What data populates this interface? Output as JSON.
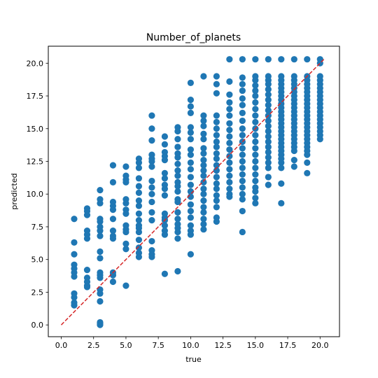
{
  "chart_data": {
    "type": "scatter",
    "title": "Number_of_planets",
    "xlabel": "true",
    "ylabel": "predicted",
    "xlim": [
      -1.0,
      21.5
    ],
    "ylim": [
      -0.9,
      21.3
    ],
    "xticks": [
      0.0,
      2.5,
      5.0,
      7.5,
      10.0,
      12.5,
      15.0,
      17.5,
      20.0
    ],
    "yticks": [
      0.0,
      2.5,
      5.0,
      7.5,
      10.0,
      12.5,
      15.0,
      17.5,
      20.0
    ],
    "xtick_labels": [
      "0.0",
      "2.5",
      "5.0",
      "7.5",
      "10.0",
      "12.5",
      "15.0",
      "17.5",
      "20.0"
    ],
    "ytick_labels": [
      "0.0",
      "2.5",
      "5.0",
      "7.5",
      "10.0",
      "12.5",
      "15.0",
      "17.5",
      "20.0"
    ],
    "grid": false,
    "point_color": "#1f77b4",
    "reference_line": {
      "style": "dashed",
      "color": "#d62728",
      "from": [
        0.0,
        0.0
      ],
      "to": [
        20.3,
        20.3
      ]
    },
    "series": [
      {
        "x": 1,
        "y": [
          8.1,
          6.3,
          5.4,
          4.6,
          4.3,
          4.0,
          3.7,
          2.4,
          2.1,
          1.7,
          1.5
        ]
      },
      {
        "x": 2,
        "y": [
          8.9,
          8.7,
          8.4,
          7.2,
          6.9,
          6.6,
          4.2,
          3.6,
          3.3,
          3.0,
          2.9
        ]
      },
      {
        "x": 3,
        "y": [
          10.3,
          9.6,
          9.3,
          8.1,
          7.9,
          7.5,
          7.2,
          6.8,
          5.6,
          5.1,
          4.0,
          3.8,
          3.6,
          2.7,
          2.4,
          1.8,
          0.2,
          0.1,
          0.0
        ]
      },
      {
        "x": 4,
        "y": [
          12.2,
          10.9,
          9.4,
          9.1,
          8.8,
          8.1,
          7.2,
          6.8,
          6.6,
          4.0,
          3.8,
          3.3
        ]
      },
      {
        "x": 5,
        "y": [
          12.1,
          11.4,
          11.1,
          10.9,
          9.6,
          9.3,
          8.8,
          8.5,
          7.6,
          7.3,
          7.1,
          6.2,
          5.8,
          3.0
        ]
      },
      {
        "x": 6,
        "y": [
          12.7,
          12.4,
          12.0,
          11.2,
          10.6,
          10.1,
          9.5,
          9.1,
          8.5,
          8.0,
          7.6,
          7.4,
          7.1,
          6.5,
          5.9,
          5.5,
          5.2
        ]
      },
      {
        "x": 7,
        "y": [
          16.0,
          15.0,
          14.1,
          13.0,
          12.7,
          12.5,
          12.1,
          11.0,
          10.5,
          10.0,
          9.4,
          8.6,
          8.0,
          6.4,
          5.7,
          5.4,
          5.2
        ]
      },
      {
        "x": 8,
        "y": [
          14.4,
          13.8,
          13.2,
          12.9,
          12.6,
          11.6,
          11.2,
          10.7,
          10.4,
          9.9,
          8.5,
          8.2,
          8.0,
          7.6,
          7.2,
          6.9,
          3.9
        ]
      },
      {
        "x": 9,
        "y": [
          15.1,
          14.8,
          14.2,
          13.6,
          13.1,
          12.8,
          12.3,
          11.8,
          11.4,
          10.9,
          10.6,
          10.2,
          9.6,
          9.4,
          8.6,
          8.1,
          7.7,
          7.4,
          7.1,
          6.6,
          4.1
        ]
      },
      {
        "x": 10,
        "y": [
          18.5,
          17.2,
          16.7,
          16.2,
          15.1,
          14.7,
          14.2,
          13.4,
          13.0,
          12.4,
          11.9,
          11.3,
          10.7,
          10.2,
          9.8,
          9.2,
          8.7,
          8.2,
          7.6,
          7.2,
          6.9,
          5.4
        ]
      },
      {
        "x": 11,
        "y": [
          19.0,
          16.0,
          15.6,
          15.2,
          14.6,
          14.2,
          13.5,
          13.1,
          12.6,
          12.2,
          11.8,
          11.4,
          10.9,
          10.4,
          10.0,
          9.5,
          9.0,
          8.6,
          8.1,
          7.7,
          7.3
        ]
      },
      {
        "x": 12,
        "y": [
          19.0,
          18.4,
          17.7,
          16.0,
          15.5,
          15.0,
          14.5,
          14.0,
          13.6,
          13.1,
          12.7,
          12.2,
          11.8,
          11.3,
          10.8,
          10.4,
          9.9,
          9.5,
          9.0,
          8.2,
          7.9
        ]
      },
      {
        "x": 13,
        "y": [
          20.3,
          18.6,
          17.6,
          17.0,
          16.5,
          16.0,
          15.4,
          14.9,
          14.4,
          13.9,
          13.4,
          12.9,
          12.4,
          11.9,
          11.4,
          10.9,
          10.4,
          10.0,
          9.8
        ]
      },
      {
        "x": 14,
        "y": [
          20.3,
          18.9,
          18.4,
          17.9,
          17.3,
          16.8,
          16.2,
          15.6,
          15.0,
          14.5,
          14.0,
          13.5,
          13.0,
          12.5,
          12.0,
          11.5,
          11.0,
          10.5,
          10.0,
          9.6,
          8.7,
          7.1
        ]
      },
      {
        "x": 15,
        "y": [
          20.3,
          19.0,
          18.7,
          18.3,
          17.9,
          17.5,
          17.0,
          16.5,
          16.0,
          15.5,
          15.0,
          14.5,
          14.0,
          13.5,
          13.0,
          12.5,
          12.0,
          11.5,
          11.0,
          10.5,
          10.2,
          9.7,
          9.3
        ]
      },
      {
        "x": 16,
        "y": [
          20.3,
          19.0,
          18.7,
          18.4,
          18.0,
          17.6,
          17.2,
          16.8,
          16.4,
          16.0,
          15.6,
          15.2,
          14.8,
          14.4,
          14.0,
          13.6,
          13.2,
          12.8,
          12.4,
          12.0,
          11.3,
          10.7
        ]
      },
      {
        "x": 17,
        "y": [
          20.3,
          19.0,
          18.7,
          18.4,
          18.1,
          17.8,
          17.5,
          17.2,
          16.9,
          16.6,
          16.3,
          16.0,
          15.7,
          15.4,
          15.1,
          14.8,
          14.5,
          14.2,
          13.9,
          13.6,
          13.3,
          13.0,
          12.7,
          12.4,
          12.0,
          10.8,
          9.3
        ]
      },
      {
        "x": 18,
        "y": [
          20.3,
          19.0,
          18.7,
          18.4,
          18.1,
          17.8,
          17.5,
          17.2,
          16.9,
          16.6,
          16.3,
          16.0,
          15.7,
          15.4,
          15.1,
          14.8,
          14.5,
          14.2,
          13.9,
          13.6,
          13.3,
          12.6,
          12.1
        ]
      },
      {
        "x": 19,
        "y": [
          20.3,
          19.0,
          18.7,
          18.4,
          18.1,
          17.8,
          17.5,
          17.2,
          16.9,
          16.6,
          16.3,
          16.0,
          15.7,
          15.4,
          15.1,
          14.8,
          14.5,
          14.2,
          13.9,
          13.6,
          13.3,
          13.0,
          12.4,
          11.6
        ]
      },
      {
        "x": 20,
        "y": [
          20.3,
          20.0,
          19.0,
          18.7,
          18.4,
          18.1,
          17.8,
          17.5,
          17.2,
          16.9,
          16.6,
          16.3,
          16.0,
          15.7,
          15.4,
          15.1,
          14.8,
          14.5,
          14.2
        ]
      }
    ]
  }
}
